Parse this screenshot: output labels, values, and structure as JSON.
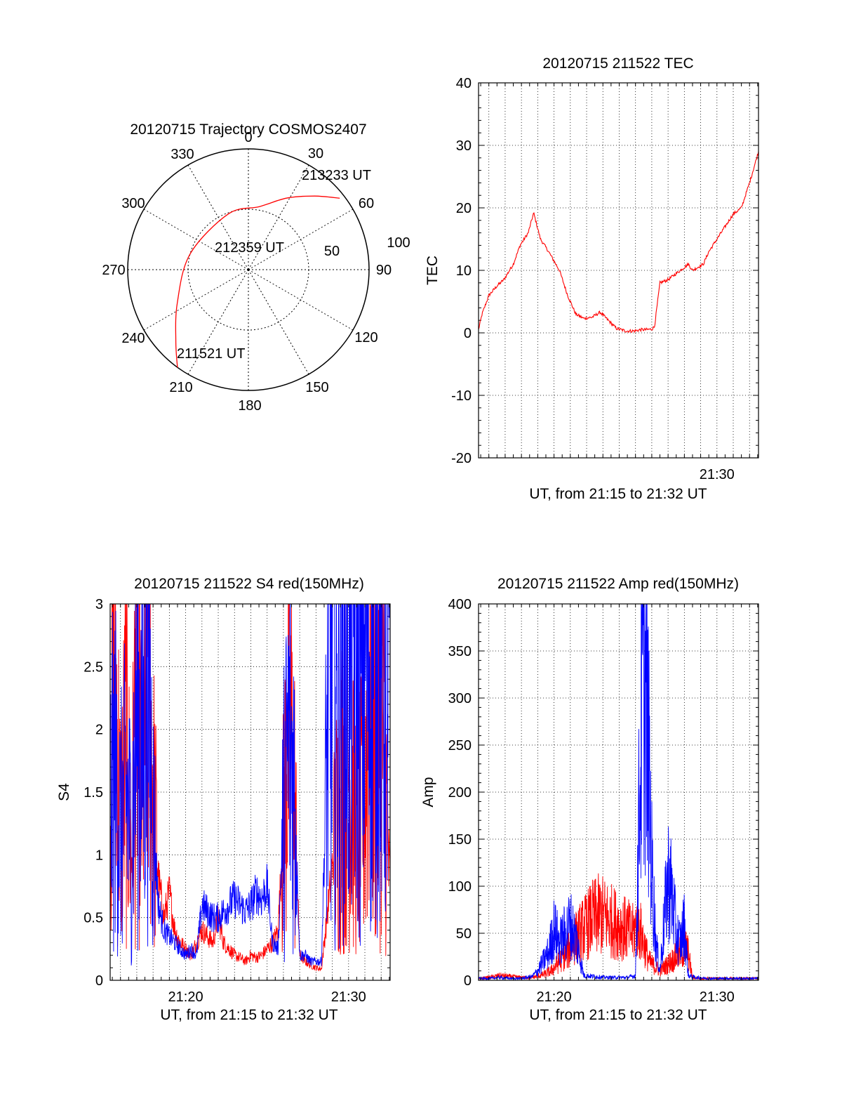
{
  "chart_data": [
    {
      "type": "polar",
      "title": "20120715 Trajectory COSMOS2407",
      "azimuth_labels": [
        "0",
        "30",
        "60",
        "90",
        "120",
        "150",
        "180",
        "210",
        "240",
        "270",
        "300",
        "330"
      ],
      "zenith_labels": [
        "50",
        "100"
      ],
      "zenith_range": [
        0,
        100
      ],
      "grid": true,
      "series": [
        {
          "color": "#ff0000",
          "points": [
            {
              "az": 216,
              "zen": 100
            },
            {
              "az": 225,
              "zen": 85
            },
            {
              "az": 245,
              "zen": 65
            },
            {
              "az": 285,
              "zen": 50
            },
            {
              "az": 340,
              "zen": 49
            },
            {
              "az": 10,
              "zen": 53
            },
            {
              "az": 28,
              "zen": 67
            },
            {
              "az": 42,
              "zen": 82
            },
            {
              "az": 52,
              "zen": 96
            }
          ]
        }
      ],
      "annotations": [
        "213233 UT",
        "212359 UT",
        "211521 UT"
      ]
    },
    {
      "type": "line",
      "title": "20120715 211522 TEC",
      "xlabel": "UT, from 21:15 to 21:32 UT",
      "ylabel": "TEC",
      "xlim": [
        "21:15:22",
        "21:32:33"
      ],
      "ylim": [
        -20,
        40
      ],
      "yticks": [
        "-20",
        "-10",
        "0",
        "10",
        "20",
        "30",
        "40"
      ],
      "xticks": [
        "21:30"
      ],
      "grid": true,
      "series": [
        {
          "color": "#ff0000",
          "x": [
            "21:15:22",
            "21:15:35",
            "21:16:00",
            "21:16:30",
            "21:16:55",
            "21:17:30",
            "21:17:55",
            "21:18:25",
            "21:18:45",
            "21:19:10",
            "21:19:40",
            "21:20:20",
            "21:20:50",
            "21:21:20",
            "21:21:50",
            "21:22:20",
            "21:22:50",
            "21:23:20",
            "21:23:50",
            "21:24:25",
            "21:24:55",
            "21:25:20",
            "21:25:40",
            "21:26:00",
            "21:26:10",
            "21:26:30",
            "21:27:00",
            "21:27:30",
            "21:28:00",
            "21:28:15",
            "21:28:30",
            "21:28:50",
            "21:29:10",
            "21:29:30",
            "21:30:00",
            "21:30:30",
            "21:31:00",
            "21:31:30",
            "21:32:00",
            "21:32:33"
          ],
          "y": [
            0.5,
            3,
            6,
            7.5,
            8.5,
            11,
            14,
            16,
            19.2,
            15,
            13,
            10,
            6,
            3,
            2.3,
            2.5,
            3.3,
            2,
            0.7,
            0.3,
            0.3,
            0.5,
            0.5,
            0.6,
            1,
            8,
            8.5,
            9.5,
            10.5,
            11,
            10,
            10.5,
            11,
            13,
            15,
            17,
            19,
            20,
            24,
            29
          ]
        }
      ]
    },
    {
      "type": "line",
      "title": "20120715 211522 S4 red(150MHz)",
      "xlabel": "UT, from 21:15 to 21:32 UT",
      "ylabel": "S4",
      "xlim": [
        "21:15:22",
        "21:32:33"
      ],
      "ylim": [
        0,
        3
      ],
      "yticks": [
        "0",
        "0.5",
        "1",
        "1.5",
        "2",
        "2.5",
        "3"
      ],
      "xticks": [
        "21:20",
        "21:30"
      ],
      "grid": true,
      "series": [
        {
          "color": "#ff0000",
          "x": [
            "21:15:22",
            "21:15:40",
            "21:16:00",
            "21:16:20",
            "21:16:40",
            "21:17:00",
            "21:17:20",
            "21:17:40",
            "21:18:00",
            "21:18:20",
            "21:18:40",
            "21:19:00",
            "21:19:20",
            "21:19:40",
            "21:20:00",
            "21:20:20",
            "21:20:40",
            "21:21:00",
            "21:21:20",
            "21:21:40",
            "21:22:00",
            "21:22:20",
            "21:22:40",
            "21:23:00",
            "21:23:20",
            "21:23:40",
            "21:24:00",
            "21:24:20",
            "21:24:40",
            "21:25:00",
            "21:25:20",
            "21:25:40",
            "21:26:00",
            "21:26:20",
            "21:26:40",
            "21:27:00",
            "21:27:20",
            "21:27:40",
            "21:28:00",
            "21:28:20",
            "21:28:40",
            "21:29:00",
            "21:29:20",
            "21:29:40",
            "21:30:00",
            "21:30:20",
            "21:30:40",
            "21:31:00",
            "21:31:20",
            "21:31:40",
            "21:32:00",
            "21:32:33"
          ],
          "y": [
            1.6,
            2.4,
            1.2,
            1.9,
            1.0,
            2.5,
            1.4,
            2.8,
            1.5,
            0.8,
            0.5,
            0.7,
            0.4,
            0.3,
            0.25,
            0.2,
            0.3,
            0.4,
            0.35,
            0.3,
            0.5,
            0.3,
            0.25,
            0.2,
            0.18,
            0.15,
            0.2,
            0.18,
            0.2,
            0.25,
            0.3,
            0.4,
            1.2,
            2.1,
            1.5,
            0.2,
            0.15,
            0.12,
            0.1,
            0.09,
            0.5,
            0.9,
            1.3,
            1.6,
            1.8,
            1.4,
            1.2,
            1.5,
            2.4,
            1.6,
            2.2,
            0.8
          ]
        },
        {
          "color": "#0000ff",
          "x": [
            "21:15:22",
            "21:15:40",
            "21:16:00",
            "21:16:20",
            "21:16:40",
            "21:17:00",
            "21:17:20",
            "21:17:40",
            "21:18:00",
            "21:18:20",
            "21:18:40",
            "21:19:00",
            "21:19:20",
            "21:19:40",
            "21:20:00",
            "21:20:20",
            "21:20:40",
            "21:21:00",
            "21:21:20",
            "21:21:40",
            "21:22:00",
            "21:22:20",
            "21:22:40",
            "21:23:00",
            "21:23:20",
            "21:23:40",
            "21:24:00",
            "21:24:20",
            "21:24:40",
            "21:25:00",
            "21:25:20",
            "21:25:40",
            "21:26:00",
            "21:26:20",
            "21:26:40",
            "21:27:00",
            "21:27:20",
            "21:27:40",
            "21:28:00",
            "21:28:20",
            "21:28:40",
            "21:29:00",
            "21:29:20",
            "21:29:40",
            "21:30:00",
            "21:30:20",
            "21:30:40",
            "21:31:00",
            "21:31:20",
            "21:31:40",
            "21:32:00",
            "21:32:33"
          ],
          "y": [
            1.4,
            1.7,
            1.2,
            1.5,
            1.1,
            2.2,
            1.8,
            2.6,
            1.3,
            0.6,
            0.4,
            0.35,
            0.3,
            0.25,
            0.2,
            0.25,
            0.2,
            0.6,
            0.55,
            0.5,
            0.5,
            0.55,
            0.6,
            0.65,
            0.6,
            0.55,
            0.6,
            0.7,
            0.65,
            0.75,
            0.3,
            0.25,
            1.3,
            1.9,
            1.6,
            0.2,
            0.2,
            0.15,
            0.15,
            0.15,
            1.8,
            2.5,
            2.0,
            2.6,
            2.3,
            2.8,
            2.1,
            2.7,
            2.5,
            2.9,
            2.6,
            2.4
          ]
        }
      ]
    },
    {
      "type": "line",
      "title": "20120715 211522 Amp red(150MHz)",
      "xlabel": "UT, from 21:15 to 21:32 UT",
      "ylabel": "Amp",
      "xlim": [
        "21:15:22",
        "21:32:33"
      ],
      "ylim": [
        0,
        400
      ],
      "yticks": [
        "0",
        "50",
        "100",
        "150",
        "200",
        "250",
        "300",
        "350",
        "400"
      ],
      "xticks": [
        "21:20",
        "21:30"
      ],
      "grid": true,
      "series": [
        {
          "color": "#ff0000",
          "x": [
            "21:15:22",
            "21:16:00",
            "21:16:40",
            "21:17:20",
            "21:18:00",
            "21:18:40",
            "21:19:20",
            "21:19:50",
            "21:20:20",
            "21:20:50",
            "21:21:20",
            "21:21:50",
            "21:22:20",
            "21:22:50",
            "21:23:20",
            "21:23:50",
            "21:24:20",
            "21:24:50",
            "21:25:10",
            "21:25:30",
            "21:25:50",
            "21:26:10",
            "21:26:30",
            "21:26:50",
            "21:27:10",
            "21:27:30",
            "21:27:50",
            "21:28:10",
            "21:28:30",
            "21:29:00",
            "21:30:00",
            "21:31:00",
            "21:32:33"
          ],
          "y": [
            2,
            3,
            5,
            4,
            3,
            3,
            6,
            10,
            20,
            30,
            45,
            55,
            65,
            70,
            65,
            60,
            55,
            50,
            60,
            40,
            20,
            15,
            10,
            15,
            20,
            25,
            30,
            35,
            3,
            2,
            2,
            2,
            2
          ]
        },
        {
          "color": "#0000ff",
          "x": [
            "21:15:22",
            "21:16:00",
            "21:16:40",
            "21:17:20",
            "21:18:00",
            "21:18:40",
            "21:19:00",
            "21:19:20",
            "21:19:40",
            "21:20:00",
            "21:20:20",
            "21:20:40",
            "21:21:00",
            "21:21:20",
            "21:21:50",
            "21:22:30",
            "21:23:10",
            "21:23:50",
            "21:24:30",
            "21:25:00",
            "21:25:15",
            "21:25:30",
            "21:25:45",
            "21:26:00",
            "21:26:15",
            "21:26:30",
            "21:26:45",
            "21:27:00",
            "21:27:15",
            "21:27:30",
            "21:27:45",
            "21:28:00",
            "21:28:15",
            "21:28:40",
            "21:29:30",
            "21:30:30",
            "21:31:30",
            "21:32:33"
          ],
          "y": [
            2,
            2,
            3,
            2,
            2,
            4,
            10,
            20,
            30,
            55,
            40,
            50,
            60,
            45,
            5,
            4,
            3,
            3,
            3,
            5,
            200,
            330,
            260,
            120,
            40,
            10,
            60,
            110,
            90,
            50,
            40,
            60,
            5,
            3,
            2,
            2,
            2,
            2
          ]
        }
      ]
    }
  ]
}
